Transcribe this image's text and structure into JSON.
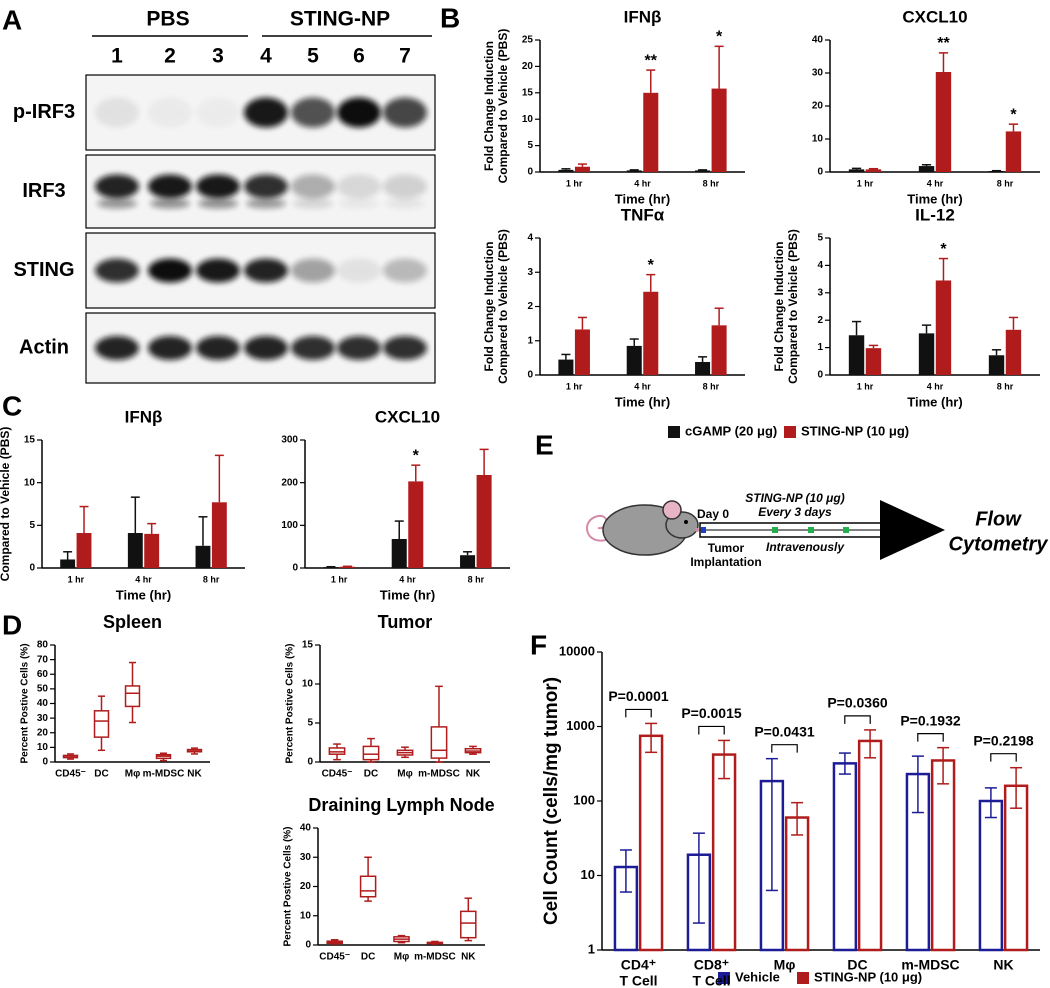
{
  "panel_labels": [
    "A",
    "B",
    "C",
    "D",
    "E",
    "F"
  ],
  "blot": {
    "groups": [
      "PBS",
      "STING-NP"
    ],
    "lanes": [
      "1",
      "2",
      "3",
      "4",
      "5",
      "6",
      "7"
    ],
    "rows": [
      "p-IRF3",
      "IRF3",
      "STING",
      "Actin"
    ]
  },
  "legend_bc": [
    {
      "name": "cGAMP (20 μg)",
      "color": "#111111"
    },
    {
      "name": "STING-NP (10 μg)",
      "color": "#b01c1c"
    }
  ],
  "legend_f": [
    {
      "name": "Vehicle",
      "color": "#1c1c96"
    },
    {
      "name": "STING-NP (10 μg)",
      "color": "#b01c1c"
    }
  ],
  "diagram": {
    "day": "Day 0",
    "dose": "STING-NP (10 μg)",
    "schedule": "Every 3 days",
    "route": "Intravenously",
    "start": [
      "Tumor",
      "Implantation"
    ],
    "end": [
      "Flow",
      "Cytometry"
    ]
  },
  "chart_data": [
    {
      "type": "bar",
      "title": "IFNβ",
      "y_label": [
        "Fold Change Induction",
        "Compared to Vehicle (PBS)"
      ],
      "x_label": "Time (hr)",
      "categories": [
        "1 hr",
        "4 hr",
        "8 hr"
      ],
      "ylim": [
        0,
        25
      ],
      "yticks": [
        0,
        5,
        10,
        15,
        20,
        25
      ],
      "series": [
        {
          "color": "#111111",
          "values": [
            0.4,
            0.3,
            0.3
          ],
          "errors": [
            0.2,
            0.1,
            0.1
          ]
        },
        {
          "color": "#b01c1c",
          "values": [
            1.0,
            15,
            15.8
          ],
          "errors": [
            0.5,
            4.3,
            8
          ],
          "significance": [
            null,
            "**",
            "*"
          ]
        }
      ]
    },
    {
      "type": "bar",
      "title": "CXCL10",
      "x_label": "Time (hr)",
      "categories": [
        "1 hr",
        "4 hr",
        "8 hr"
      ],
      "ylim": [
        0,
        40
      ],
      "yticks": [
        0,
        10,
        20,
        30,
        40
      ],
      "series": [
        {
          "color": "#111111",
          "values": [
            0.8,
            1.8,
            0.3
          ],
          "errors": [
            0.3,
            0.4,
            0.1
          ]
        },
        {
          "color": "#b01c1c",
          "values": [
            0.8,
            30.3,
            12.3
          ],
          "errors": [
            0.2,
            5.8,
            2.2
          ],
          "significance": [
            null,
            "**",
            "*"
          ]
        }
      ]
    },
    {
      "type": "bar",
      "title": "TNFα",
      "y_label": [
        "Fold Change Induction",
        "Compared to Vehicle (PBS)"
      ],
      "x_label": "Time (hr)",
      "categories": [
        "1 hr",
        "4 hr",
        "8 hr"
      ],
      "ylim": [
        0,
        4
      ],
      "yticks": [
        0,
        1,
        2,
        3,
        4
      ],
      "series": [
        {
          "color": "#111111",
          "values": [
            0.45,
            0.85,
            0.38
          ],
          "errors": [
            0.15,
            0.2,
            0.15
          ]
        },
        {
          "color": "#b01c1c",
          "values": [
            1.33,
            2.43,
            1.45
          ],
          "errors": [
            0.35,
            0.5,
            0.5
          ],
          "significance": [
            null,
            "*",
            null
          ]
        }
      ]
    },
    {
      "type": "bar",
      "title": "IL-12",
      "y_label": [
        "Fold Change Induction",
        "Compared to Vehicle (PBS)"
      ],
      "x_label": "Time (hr)",
      "categories": [
        "1 hr",
        "4 hr",
        "8 hr"
      ],
      "ylim": [
        0,
        5
      ],
      "yticks": [
        0,
        1,
        2,
        3,
        4,
        5
      ],
      "series": [
        {
          "color": "#111111",
          "values": [
            1.45,
            1.52,
            0.72
          ],
          "errors": [
            0.5,
            0.3,
            0.2
          ]
        },
        {
          "color": "#b01c1c",
          "values": [
            0.98,
            3.45,
            1.65
          ],
          "errors": [
            0.1,
            0.8,
            0.45
          ],
          "significance": [
            null,
            "*",
            null
          ]
        }
      ]
    },
    {
      "type": "bar",
      "title": "IFNβ",
      "y_label": [
        "Fold Change Induction",
        "Compared to Vehicle (PBS)"
      ],
      "x_label": "Time (hr)",
      "categories": [
        "1 hr",
        "4 hr",
        "8 hr"
      ],
      "ylim": [
        0,
        15
      ],
      "yticks": [
        0,
        5,
        10,
        15
      ],
      "series": [
        {
          "color": "#111111",
          "values": [
            1.0,
            4.1,
            2.6
          ],
          "errors": [
            0.9,
            4.2,
            3.4
          ]
        },
        {
          "color": "#b01c1c",
          "values": [
            4.1,
            4.0,
            7.7
          ],
          "errors": [
            3.1,
            1.2,
            5.5
          ]
        }
      ]
    },
    {
      "type": "bar",
      "title": "CXCL10",
      "x_label": "Time (hr)",
      "categories": [
        "1 hr",
        "4 hr",
        "8 hr"
      ],
      "ylim": [
        0,
        300
      ],
      "yticks": [
        0,
        100,
        200,
        300
      ],
      "series": [
        {
          "color": "#111111",
          "values": [
            2,
            68,
            30
          ],
          "errors": [
            1,
            42,
            8
          ]
        },
        {
          "color": "#b01c1c",
          "values": [
            3,
            203,
            218
          ],
          "errors": [
            1,
            38,
            60
          ],
          "significance": [
            null,
            "*",
            null
          ]
        }
      ]
    },
    {
      "type": "box",
      "title": "Spleen",
      "y_label": [
        "Percent Postive Cells (%)"
      ],
      "color": "#b01c1c",
      "categories": [
        "CD45⁻",
        "DC",
        "Mφ",
        "m-MDSC",
        "NK"
      ],
      "ylim": [
        0,
        80
      ],
      "yticks": [
        0,
        10,
        20,
        30,
        40,
        50,
        60,
        70,
        80
      ],
      "boxes": [
        {
          "min": 2,
          "q1": 3,
          "median": 3.5,
          "q3": 4.5,
          "max": 5.5
        },
        {
          "min": 8,
          "q1": 17,
          "median": 28,
          "q3": 35,
          "max": 45
        },
        {
          "min": 27,
          "q1": 38,
          "median": 47,
          "q3": 52,
          "max": 68
        },
        {
          "min": 1,
          "q1": 2.5,
          "median": 4,
          "q3": 5,
          "max": 6
        },
        {
          "min": 5.5,
          "q1": 7,
          "median": 7.5,
          "q3": 8.5,
          "max": 9.5
        }
      ]
    },
    {
      "type": "box",
      "title": "Tumor",
      "y_label": [
        "Percent Postive Cells (%)"
      ],
      "color": "#b01c1c",
      "categories": [
        "CD45⁻",
        "DC",
        "Mφ",
        "m-MDSC",
        "NK"
      ],
      "ylim": [
        0,
        15
      ],
      "yticks": [
        0,
        5,
        10,
        15
      ],
      "boxes": [
        {
          "min": 0.3,
          "q1": 1,
          "median": 1.3,
          "q3": 1.8,
          "max": 2.3
        },
        {
          "min": 0,
          "q1": 0.3,
          "median": 1,
          "q3": 2,
          "max": 3
        },
        {
          "min": 0.6,
          "q1": 0.9,
          "median": 1.2,
          "q3": 1.5,
          "max": 1.9
        },
        {
          "min": 0,
          "q1": 0.5,
          "median": 1.5,
          "q3": 4.5,
          "max": 9.7
        },
        {
          "min": 1,
          "q1": 1.2,
          "median": 1.4,
          "q3": 1.7,
          "max": 2
        }
      ]
    },
    {
      "type": "box",
      "title": "Draining Lymph Node",
      "y_label": [
        "Percent Postive Cells (%)"
      ],
      "color": "#b01c1c",
      "categories": [
        "CD45⁻",
        "DC",
        "Mφ",
        "m-MDSC",
        "NK"
      ],
      "ylim": [
        0,
        40
      ],
      "yticks": [
        0,
        10,
        20,
        30,
        40
      ],
      "boxes": [
        {
          "min": 0.3,
          "q1": 0.6,
          "median": 1,
          "q3": 1.3,
          "max": 1.8
        },
        {
          "min": 15,
          "q1": 16.5,
          "median": 18.5,
          "q3": 23.5,
          "max": 30
        },
        {
          "min": 0.8,
          "q1": 1.2,
          "median": 2,
          "q3": 2.8,
          "max": 3.2
        },
        {
          "min": 0.3,
          "q1": 0.5,
          "median": 0.7,
          "q3": 0.9,
          "max": 1.2
        },
        {
          "min": 1.5,
          "q1": 2.5,
          "median": 7.5,
          "q3": 11.5,
          "max": 16
        }
      ]
    },
    {
      "type": "bar",
      "log_scale": true,
      "filled": false,
      "y_label": [
        "Cell Count (cells/mg tumor)"
      ],
      "categories": [
        [
          "CD4⁺",
          "T Cell"
        ],
        [
          "CD8⁺",
          "T Cell"
        ],
        [
          "Mφ"
        ],
        [
          "DC"
        ],
        [
          "m-MDSC"
        ],
        [
          "NK"
        ]
      ],
      "ylim": [
        1,
        10000
      ],
      "yticks": [
        1,
        10,
        100,
        1000,
        10000
      ],
      "p_labels": [
        "P=0.0001",
        "P=0.0015",
        "P=0.0431",
        "P=0.0360",
        "P=0.1932",
        "P=0.2198"
      ],
      "series": [
        {
          "color": "#1c1c96",
          "values": [
            13,
            19,
            185,
            320,
            230,
            100
          ],
          "lower": [
            6,
            2.3,
            6.3,
            230,
            70,
            60
          ],
          "upper": [
            22,
            37,
            370,
            440,
            400,
            150
          ]
        },
        {
          "color": "#b01c1c",
          "values": [
            750,
            420,
            60,
            640,
            350,
            160
          ],
          "lower": [
            450,
            200,
            35,
            380,
            170,
            80
          ],
          "upper": [
            1100,
            650,
            95,
            900,
            520,
            280
          ]
        }
      ]
    }
  ]
}
